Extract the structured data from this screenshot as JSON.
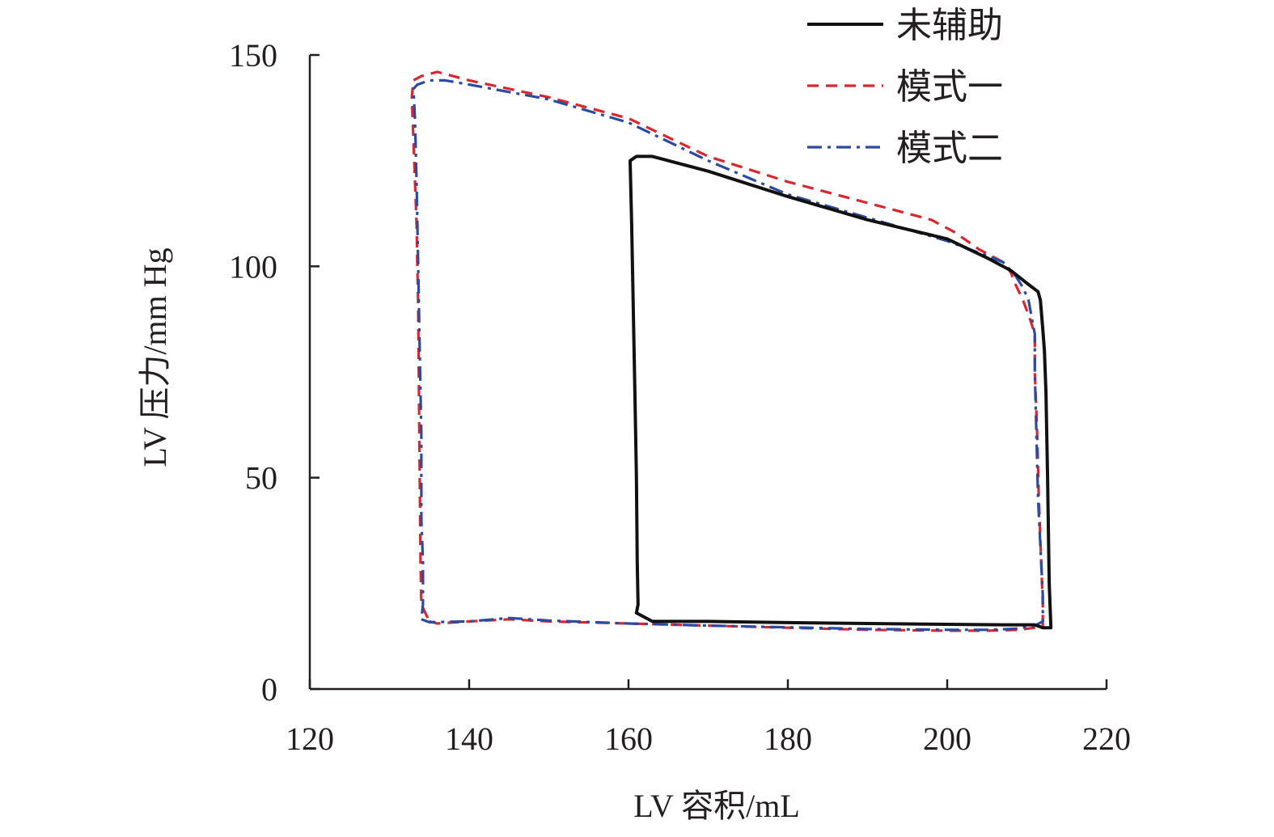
{
  "chart_data": {
    "type": "line",
    "title": "",
    "xlabel": "LV 容积/mL",
    "ylabel": "LV 压力/mm Hg",
    "xlim": [
      120,
      220
    ],
    "ylim": [
      0,
      150
    ],
    "xticks": [
      120,
      140,
      160,
      180,
      200,
      220
    ],
    "yticks": [
      0,
      50,
      100,
      150
    ],
    "grid": false,
    "legend_position": "top-right",
    "series": [
      {
        "name": "未辅助",
        "color": "#111111",
        "style": "solid",
        "points": [
          [
            161,
            18
          ],
          [
            163,
            16
          ],
          [
            170,
            16
          ],
          [
            180,
            15.7
          ],
          [
            190,
            15.5
          ],
          [
            200,
            15.3
          ],
          [
            207,
            15.2
          ],
          [
            211,
            15.2
          ],
          [
            212,
            14.5
          ],
          [
            213,
            14.5
          ],
          [
            213,
            15
          ],
          [
            212.8,
            25
          ],
          [
            212.6,
            50
          ],
          [
            212.4,
            70
          ],
          [
            212.2,
            80
          ],
          [
            212,
            85
          ],
          [
            211.7,
            92
          ],
          [
            211.4,
            94
          ],
          [
            210,
            96
          ],
          [
            208,
            99
          ],
          [
            205,
            102
          ],
          [
            200,
            106.5
          ],
          [
            190,
            111
          ],
          [
            180,
            116.5
          ],
          [
            170,
            122.5
          ],
          [
            165,
            125
          ],
          [
            163,
            126
          ],
          [
            161,
            126
          ],
          [
            160.2,
            125
          ],
          [
            160.4,
            110
          ],
          [
            160.6,
            90
          ],
          [
            160.8,
            70
          ],
          [
            161,
            50
          ],
          [
            161.1,
            30
          ],
          [
            161.2,
            20
          ],
          [
            161,
            18
          ]
        ]
      },
      {
        "name": "模式一",
        "color": "#d7282f",
        "style": "dashed",
        "points": [
          [
            135,
            16
          ],
          [
            136,
            15.5
          ],
          [
            140,
            16
          ],
          [
            145,
            16.5
          ],
          [
            150,
            16
          ],
          [
            160,
            15.5
          ],
          [
            170,
            15
          ],
          [
            180,
            14.5
          ],
          [
            190,
            14
          ],
          [
            200,
            13.8
          ],
          [
            205,
            13.8
          ],
          [
            209,
            14
          ],
          [
            211,
            14.5
          ],
          [
            212,
            15
          ],
          [
            212,
            20
          ],
          [
            211.8,
            30
          ],
          [
            211.5,
            45
          ],
          [
            211.3,
            60
          ],
          [
            211,
            75
          ],
          [
            211,
            84
          ],
          [
            210.3,
            88
          ],
          [
            209.5,
            92
          ],
          [
            208.5,
            96
          ],
          [
            208,
            98.5
          ],
          [
            207,
            101
          ],
          [
            204,
            104
          ],
          [
            201,
            108
          ],
          [
            198,
            111
          ],
          [
            190,
            115
          ],
          [
            180,
            120
          ],
          [
            170,
            126
          ],
          [
            160,
            135
          ],
          [
            150,
            140
          ],
          [
            140,
            144
          ],
          [
            136,
            146
          ],
          [
            134,
            145
          ],
          [
            133,
            144
          ],
          [
            132.8,
            140
          ],
          [
            133,
            130
          ],
          [
            133.4,
            110
          ],
          [
            133.6,
            90
          ],
          [
            133.7,
            70
          ],
          [
            133.8,
            50
          ],
          [
            133.9,
            30
          ],
          [
            134,
            20
          ],
          [
            135,
            16
          ]
        ]
      },
      {
        "name": "模式二",
        "color": "#2b4aa0",
        "style": "dashdot",
        "points": [
          [
            134,
            16.5
          ],
          [
            135,
            15.8
          ],
          [
            140,
            16
          ],
          [
            145,
            16.8
          ],
          [
            150,
            16.2
          ],
          [
            160,
            15.5
          ],
          [
            170,
            15
          ],
          [
            180,
            14.6
          ],
          [
            190,
            14.2
          ],
          [
            200,
            14
          ],
          [
            205,
            14
          ],
          [
            209,
            14.3
          ],
          [
            211,
            15
          ],
          [
            212,
            16
          ],
          [
            212,
            22
          ],
          [
            211.8,
            30
          ],
          [
            211.4,
            45
          ],
          [
            211.2,
            60
          ],
          [
            211,
            75
          ],
          [
            211,
            84
          ],
          [
            210.6,
            88
          ],
          [
            210.2,
            92
          ],
          [
            209.5,
            95
          ],
          [
            208.5,
            98
          ],
          [
            207,
            101
          ],
          [
            205,
            102.5
          ],
          [
            200,
            106
          ],
          [
            190,
            111.5
          ],
          [
            180,
            117
          ],
          [
            170,
            125
          ],
          [
            160,
            134
          ],
          [
            150,
            139.5
          ],
          [
            140,
            143
          ],
          [
            137,
            144
          ],
          [
            135,
            144
          ],
          [
            133.5,
            143
          ],
          [
            133,
            142
          ],
          [
            133.2,
            135
          ],
          [
            133.4,
            120
          ],
          [
            133.6,
            100
          ],
          [
            133.8,
            80
          ],
          [
            134,
            60
          ],
          [
            134,
            40
          ],
          [
            134.2,
            30
          ],
          [
            134.2,
            20
          ],
          [
            134,
            16.5
          ]
        ]
      }
    ]
  }
}
